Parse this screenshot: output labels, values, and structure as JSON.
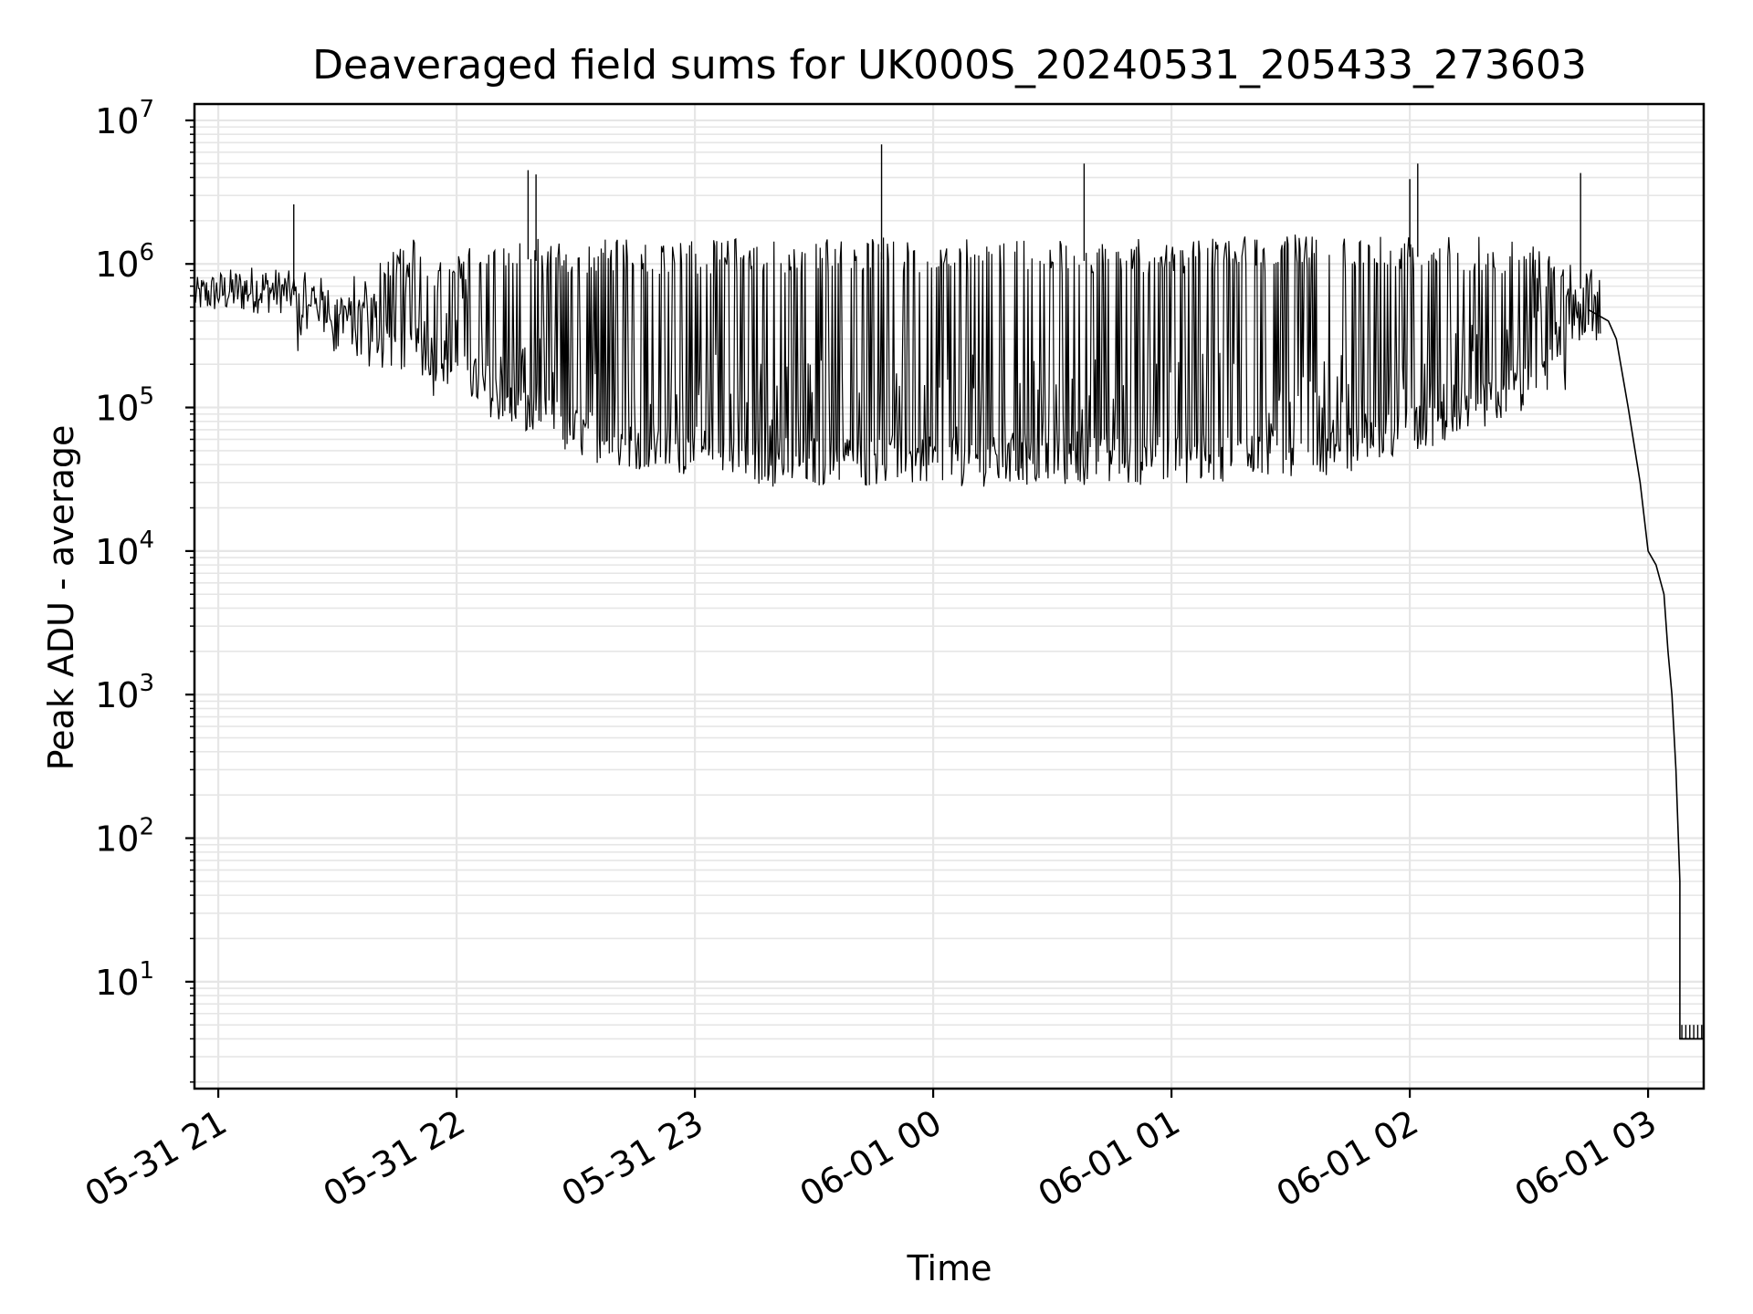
{
  "chart_data": {
    "type": "line",
    "title": "Deaveraged field sums for UK000S_20240531_205433_273603",
    "xlabel": "Time",
    "ylabel": "Peak ADU - average",
    "y_scale": "log",
    "ylim": [
      1.8,
      13000000
    ],
    "xlim": [
      "2024-05-31 20:54",
      "2024-06-01 03:14"
    ],
    "grid": true,
    "line_color": "#000000",
    "grid_color": "#e6e6e6",
    "x_ticks": [
      {
        "value": "2024-05-31 21:00",
        "label": "05-31 21"
      },
      {
        "value": "2024-05-31 22:00",
        "label": "05-31 22"
      },
      {
        "value": "2024-05-31 23:00",
        "label": "05-31 23"
      },
      {
        "value": "2024-06-01 00:00",
        "label": "06-01 00"
      },
      {
        "value": "2024-06-01 01:00",
        "label": "06-01 01"
      },
      {
        "value": "2024-06-01 02:00",
        "label": "06-01 02"
      },
      {
        "value": "2024-06-01 03:00",
        "label": "06-01 03"
      }
    ],
    "y_ticks": [
      {
        "value": 10,
        "base": "10",
        "exp": "1"
      },
      {
        "value": 100,
        "base": "10",
        "exp": "2"
      },
      {
        "value": 1000,
        "base": "10",
        "exp": "3"
      },
      {
        "value": 10000,
        "base": "10",
        "exp": "4"
      },
      {
        "value": 100000,
        "base": "10",
        "exp": "5"
      },
      {
        "value": 1000000,
        "base": "10",
        "exp": "6"
      },
      {
        "value": 10000000,
        "base": "10",
        "exp": "7"
      }
    ],
    "series": [
      {
        "x": [
          "2024-05-31 20:54",
          "2024-05-31 21:00",
          "2024-05-31 21:10",
          "2024-05-31 21:18",
          "2024-05-31 21:20",
          "2024-05-31 21:30",
          "2024-05-31 21:35",
          "2024-05-31 21:40",
          "2024-05-31 21:45",
          "2024-05-31 21:50",
          "2024-05-31 21:55",
          "2024-05-31 22:00",
          "2024-05-31 22:10",
          "2024-05-31 22:20",
          "2024-05-31 22:30",
          "2024-05-31 22:40",
          "2024-05-31 22:50",
          "2024-05-31 23:00",
          "2024-05-31 23:10",
          "2024-05-31 23:20",
          "2024-05-31 23:30",
          "2024-05-31 23:40",
          "2024-05-31 23:50",
          "2024-06-01 00:00",
          "2024-06-01 00:15",
          "2024-06-01 00:30",
          "2024-06-01 00:45",
          "2024-06-01 01:00",
          "2024-06-01 01:15",
          "2024-06-01 01:30",
          "2024-06-01 01:45",
          "2024-06-01 02:00",
          "2024-06-01 02:15",
          "2024-06-01 02:30",
          "2024-06-01 02:40",
          "2024-06-01 02:45",
          "2024-06-01 02:50",
          "2024-06-01 02:52",
          "2024-06-01 02:55",
          "2024-06-01 02:58",
          "2024-06-01 03:00",
          "2024-06-01 03:02",
          "2024-06-01 03:04",
          "2024-06-01 03:05",
          "2024-06-01 03:06",
          "2024-06-01 03:07",
          "2024-06-01 03:08",
          "2024-06-01 03:08",
          "2024-06-01 03:14"
        ],
        "y": [
          600000,
          650000,
          700000,
          600000,
          550000,
          500000,
          350000,
          280000,
          250000,
          220000,
          180000,
          150000,
          100000,
          80000,
          55000,
          55000,
          50000,
          42000,
          42000,
          45000,
          50000,
          55000,
          60000,
          65000,
          70000,
          75000,
          75000,
          75000,
          80000,
          85000,
          90000,
          110000,
          250000,
          400000,
          480000,
          480000,
          400000,
          300000,
          100000,
          30000,
          10000,
          8000,
          5000,
          2000,
          1000,
          300,
          50,
          4,
          4
        ]
      }
    ],
    "band_low": [
      450000,
      450000,
      450000,
      450000,
      400000,
      250000,
      180000,
      170000,
      150000,
      130000,
      100000,
      80000,
      55000,
      45000,
      38000,
      36000,
      33000,
      30000,
      28000,
      28000,
      28000,
      28000,
      28000,
      28000,
      28000,
      28000,
      29000,
      30000,
      32000,
      35000,
      45000,
      60000,
      100000,
      200000,
      300000
    ],
    "band_high": [
      800000,
      900000,
      1000000,
      900000,
      700000,
      650000,
      1500000,
      1500000,
      1000000,
      1200000,
      1500000,
      1700000,
      1500000,
      1500000,
      1500000,
      1500000,
      1500000,
      1500000,
      1500000,
      1500000,
      1500000,
      1550000,
      1550000,
      1600000,
      1500000,
      1500000,
      1500000,
      1550000,
      1600000,
      1600000,
      1600000,
      1600000,
      1400000,
      1000000,
      900000
    ],
    "band_x": [
      "2024-05-31 20:54",
      "2024-05-31 21:00",
      "2024-05-31 21:10",
      "2024-05-31 21:18",
      "2024-05-31 21:25",
      "2024-05-31 21:35",
      "2024-05-31 21:45",
      "2024-05-31 21:50",
      "2024-05-31 21:55",
      "2024-05-31 22:00",
      "2024-05-31 22:05",
      "2024-05-31 22:10",
      "2024-05-31 22:20",
      "2024-05-31 22:30",
      "2024-05-31 22:40",
      "2024-05-31 22:50",
      "2024-05-31 23:00",
      "2024-05-31 23:10",
      "2024-05-31 23:20",
      "2024-05-31 23:30",
      "2024-05-31 23:40",
      "2024-05-31 23:50",
      "2024-06-01 00:00",
      "2024-06-01 00:15",
      "2024-06-01 00:30",
      "2024-06-01 00:45",
      "2024-06-01 01:00",
      "2024-06-01 01:15",
      "2024-06-01 01:30",
      "2024-06-01 01:45",
      "2024-06-01 02:00",
      "2024-06-01 02:15",
      "2024-06-01 02:30",
      "2024-06-01 02:40",
      "2024-06-01 02:48"
    ],
    "spikes": [
      {
        "x": "2024-05-31 21:19",
        "y": 2600000
      },
      {
        "x": "2024-05-31 22:18",
        "y": 4500000
      },
      {
        "x": "2024-05-31 22:20",
        "y": 4200000
      },
      {
        "x": "2024-05-31 23:47",
        "y": 6800000
      },
      {
        "x": "2024-06-01 00:38",
        "y": 5000000
      },
      {
        "x": "2024-06-01 02:00",
        "y": 3900000
      },
      {
        "x": "2024-06-01 02:02",
        "y": 5000000
      },
      {
        "x": "2024-06-01 02:43",
        "y": 4300000
      }
    ],
    "floor_steps": {
      "x_start": "2024-06-01 03:08",
      "x_end": "2024-06-01 03:14",
      "y_low": 4,
      "y_high": 5,
      "count": 6
    }
  }
}
